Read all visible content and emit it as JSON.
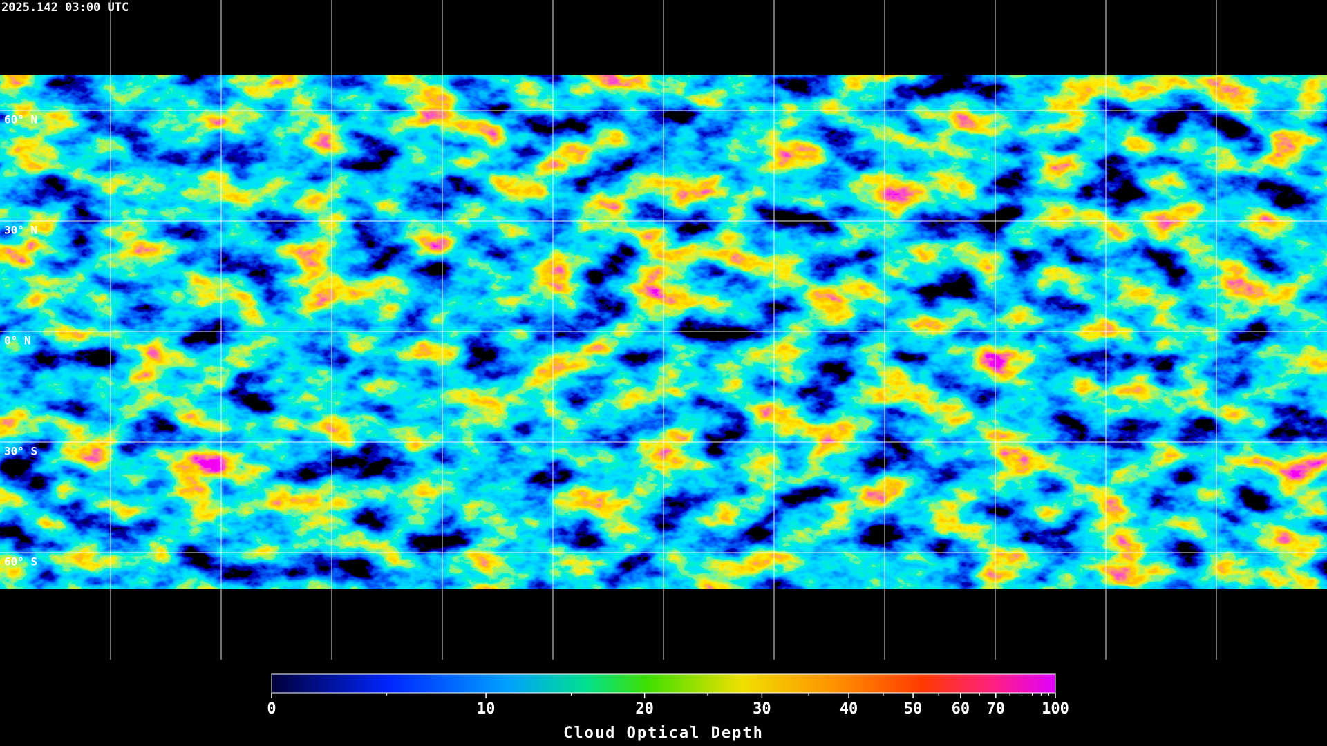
{
  "header": {
    "timestamp": "2025.142 03:00 UTC"
  },
  "map": {
    "lat_labels": [
      "60° N",
      "30° N",
      "0° N",
      "30° S",
      "60° S"
    ]
  },
  "colorbar": {
    "label": "Cloud Optical Depth",
    "range": [
      0,
      100
    ],
    "ticks": [
      0,
      10,
      20,
      30,
      40,
      50,
      60,
      70,
      100
    ],
    "minor_ticks": [
      5,
      15,
      25,
      35,
      45,
      55,
      65,
      75,
      80,
      85,
      90,
      95
    ]
  }
}
